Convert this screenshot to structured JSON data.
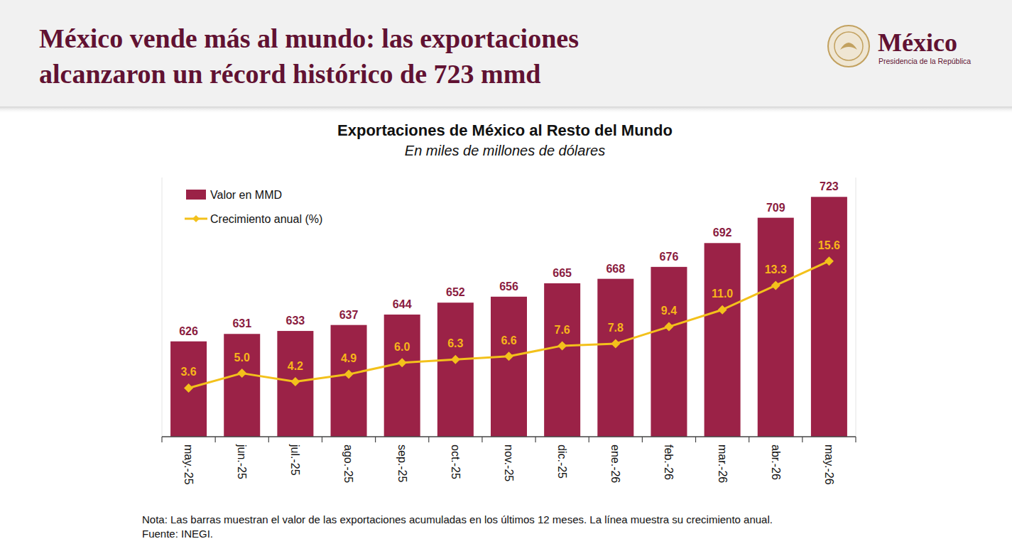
{
  "header": {
    "title_lines": [
      "México vende más al mundo: las exportaciones",
      "alcanzaron un récord histórico de 723 mmd"
    ],
    "logo_text": "México",
    "logo_subtitle": "Presidencia de la República"
  },
  "chart_data": {
    "type": "bar",
    "title": "Exportaciones de México al Resto del Mundo",
    "subtitle": "En miles de millones de dólares",
    "categories": [
      "may.-25",
      "jun.-25",
      "jul.-25",
      "ago.-25",
      "sep.-25",
      "oct.-25",
      "nov.-25",
      "dic.-25",
      "ene.-26",
      "feb.-26",
      "mar.-26",
      "abr.-26",
      "may.-26"
    ],
    "series": [
      {
        "name": "Valor en MMD",
        "type": "bar",
        "color": "#9b2247",
        "values": [
          626,
          631,
          633,
          637,
          644,
          652,
          656,
          665,
          668,
          676,
          692,
          709,
          723
        ]
      },
      {
        "name": "Crecimiento anual (%)",
        "type": "line",
        "axis": "y2",
        "color": "#f3c11b",
        "marker": "diamond",
        "values": [
          3.6,
          5.0,
          4.2,
          4.9,
          6.0,
          6.3,
          6.6,
          7.6,
          7.8,
          9.4,
          11.0,
          13.3,
          15.6
        ],
        "value_labels": [
          "3.6",
          "5.0",
          "4.2",
          "4.9",
          "6.0",
          "6.3",
          "6.6",
          "7.6",
          "7.8",
          "9.4",
          "11.0",
          "13.3",
          "15.6"
        ]
      }
    ],
    "ylim": [
      562,
      736
    ],
    "y2lim": [
      -1,
      23.5
    ],
    "data_labels": true,
    "tick_labels": "x",
    "legend": "upper left",
    "grid": false
  },
  "footer": {
    "note": "Nota: Las barras muestran el valor de las exportaciones acumuladas en los últimos 12 meses. La línea muestra su crecimiento anual.",
    "source": "Fuente: INEGI."
  }
}
